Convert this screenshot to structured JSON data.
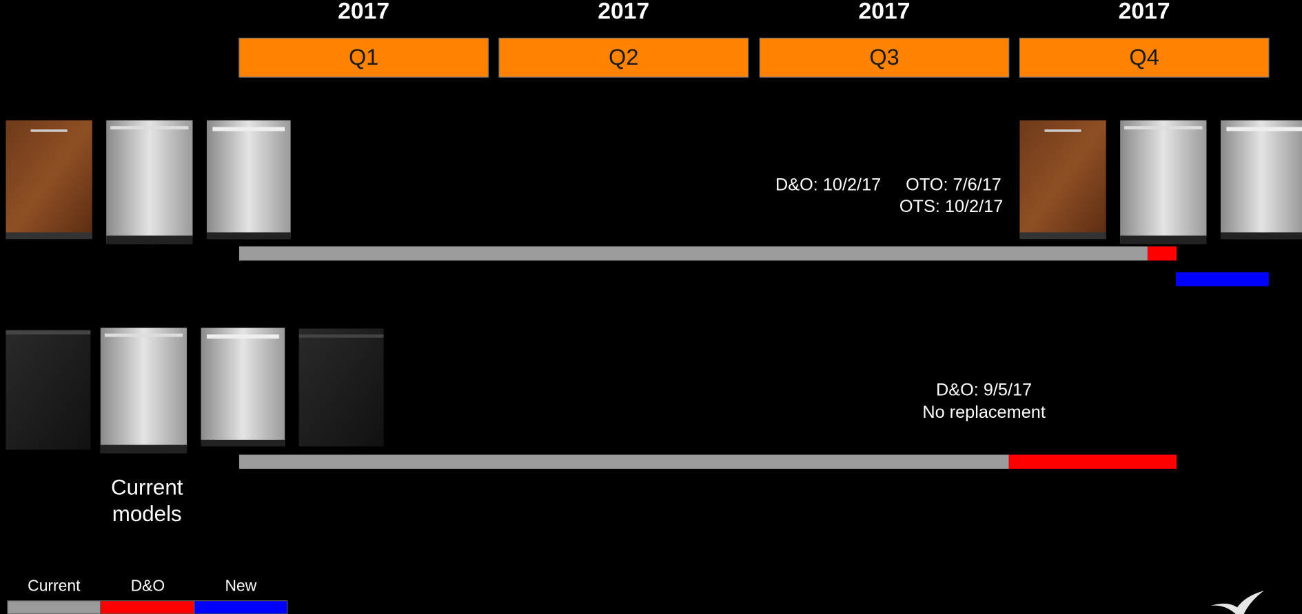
{
  "timeline": {
    "quarters": [
      {
        "year": "2017",
        "label": "Q1"
      },
      {
        "year": "2017",
        "label": "Q2"
      },
      {
        "year": "2017",
        "label": "Q3"
      },
      {
        "year": "2017",
        "label": "Q4"
      }
    ],
    "rows": [
      {
        "annotation": [
          "D&O: 10/2/17",
          "OTO: 7/6/17",
          "OTS: 10/2/17"
        ]
      },
      {
        "annotation": [
          "D&O: 9/5/17",
          "No replacement"
        ]
      }
    ],
    "current_models_label": [
      "Current",
      "models"
    ],
    "legend": [
      "Current",
      "D&O",
      "New"
    ]
  }
}
